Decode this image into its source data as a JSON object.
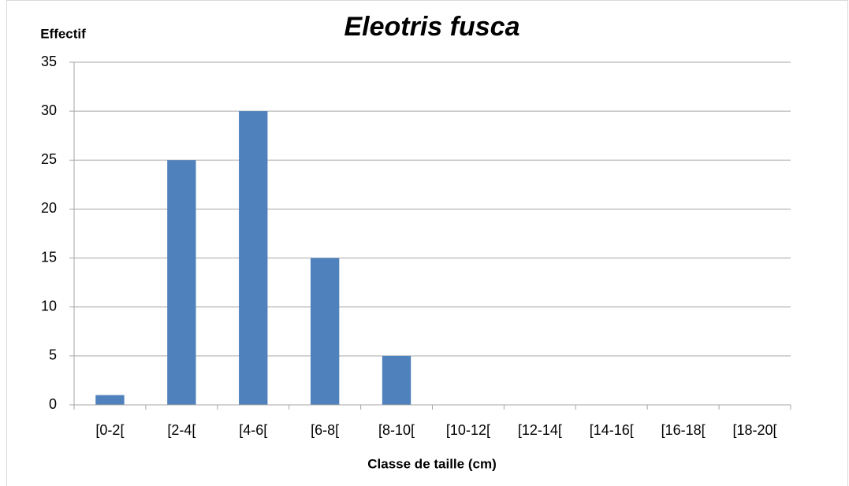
{
  "chart_data": {
    "type": "bar",
    "title": "Eleotris fusca",
    "y_label": "Effectif",
    "x_label": "Classe de taille (cm)",
    "categories": [
      "[0-2[",
      "[2-4[",
      "[4-6[",
      "[6-8[",
      "[8-10[",
      "[10-12[",
      "[12-14[",
      "[14-16[",
      "[16-18[",
      "[18-20["
    ],
    "values": [
      1,
      25,
      30,
      15,
      5,
      0,
      0,
      0,
      0,
      0
    ],
    "color": "#4f81bd",
    "ylim": [
      0,
      35
    ],
    "yticks": [
      0,
      5,
      10,
      15,
      20,
      25,
      30,
      35
    ],
    "grid": true
  }
}
